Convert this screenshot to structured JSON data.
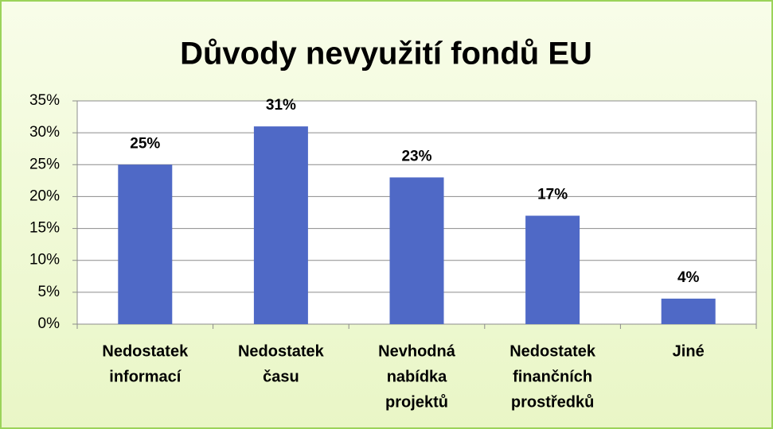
{
  "chart_data": {
    "type": "bar",
    "title": "Důvody nevyužití fondů EU",
    "categories": [
      [
        "Nedostatek",
        "informací"
      ],
      [
        "Nedostatek",
        "času"
      ],
      [
        "Nevhodná",
        "nabídka",
        "projektů"
      ],
      [
        "Nedostatek",
        "finančních",
        "prostředků"
      ],
      [
        "Jiné"
      ]
    ],
    "values": [
      25,
      31,
      23,
      17,
      4
    ],
    "value_labels": [
      "25%",
      "31%",
      "23%",
      "17%",
      "4%"
    ],
    "color": "#4f69c6",
    "ylim": [
      0,
      35
    ],
    "yticks": [
      {
        "value": 0,
        "label": "0%"
      },
      {
        "value": 5,
        "label": "5%"
      },
      {
        "value": 10,
        "label": "10%"
      },
      {
        "value": 15,
        "label": "15%"
      },
      {
        "value": 20,
        "label": "20%"
      },
      {
        "value": 25,
        "label": "25%"
      },
      {
        "value": 30,
        "label": "30%"
      },
      {
        "value": 35,
        "label": "35%"
      }
    ],
    "grid": true
  }
}
